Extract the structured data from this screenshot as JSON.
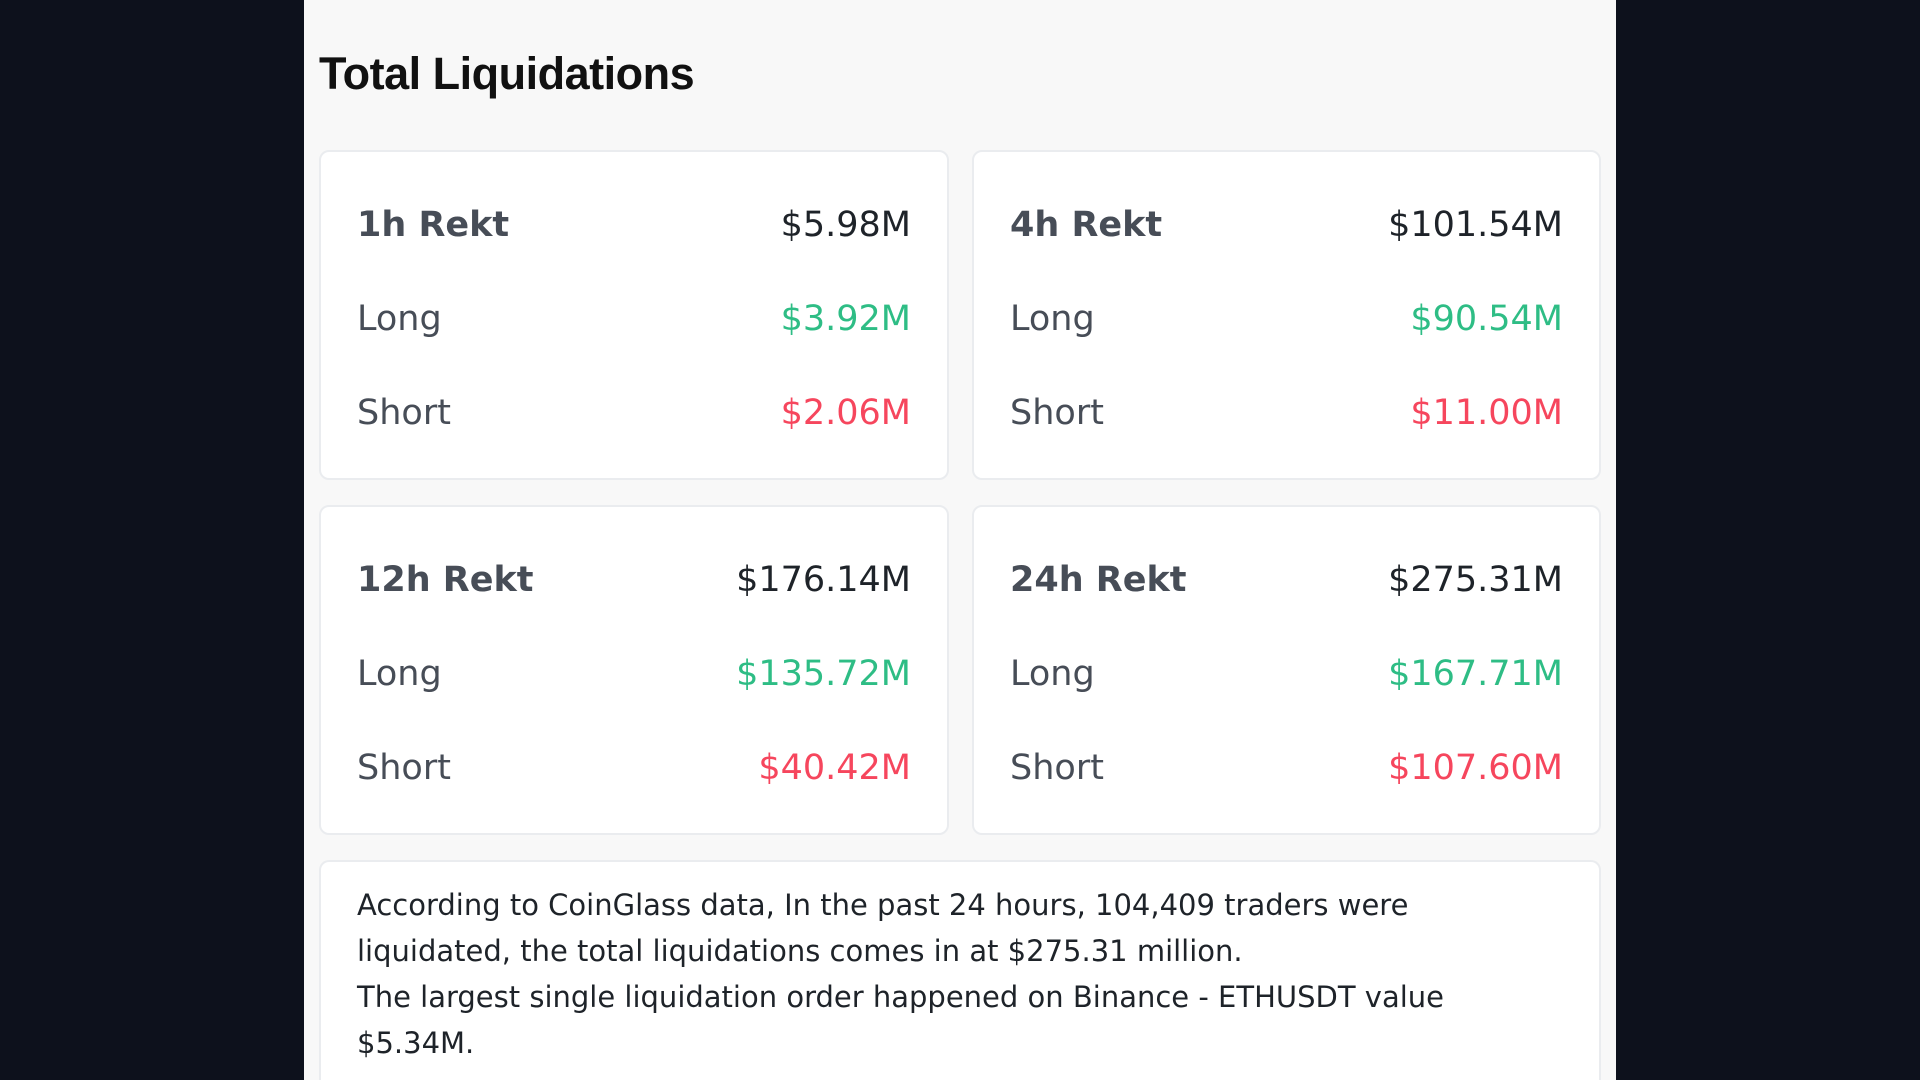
{
  "title": "Total Liquidations",
  "colors": {
    "background": "#0d111c",
    "panel": "#f8f8f8",
    "long": "#2ebd85",
    "short": "#f6465d",
    "text": "#1e2329"
  },
  "cards": [
    {
      "period": "1h Rekt",
      "total": "$5.98M",
      "long_label": "Long",
      "long": "$3.92M",
      "short_label": "Short",
      "short": "$2.06M"
    },
    {
      "period": "4h Rekt",
      "total": "$101.54M",
      "long_label": "Long",
      "long": "$90.54M",
      "short_label": "Short",
      "short": "$11.00M"
    },
    {
      "period": "12h Rekt",
      "total": "$176.14M",
      "long_label": "Long",
      "long": "$135.72M",
      "short_label": "Short",
      "short": "$40.42M"
    },
    {
      "period": "24h Rekt",
      "total": "$275.31M",
      "long_label": "Long",
      "long": "$167.71M",
      "short_label": "Short",
      "short": "$107.60M"
    }
  ],
  "summary": {
    "line1": "According to CoinGlass data, In the past 24 hours, 104,409 traders were liquidated, the total liquidations comes in at $275.31 million.",
    "line2": "The largest single liquidation order happened on Binance - ETHUSDT value $5.34M."
  }
}
